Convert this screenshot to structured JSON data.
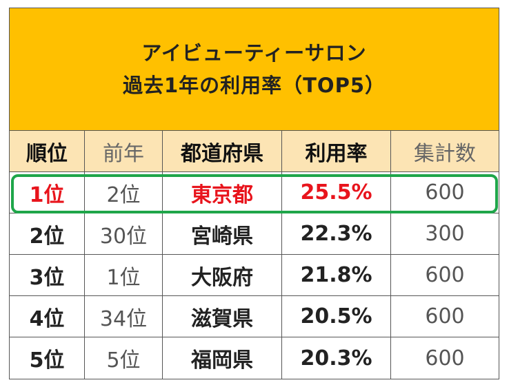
{
  "title": {
    "line1": "アイビューティーサロン",
    "line2": "過去1年の利用率（TOP5）"
  },
  "columns": [
    "順位",
    "前年",
    "都道府県",
    "利用率",
    "集計数"
  ],
  "rows": [
    {
      "rank": "1位",
      "prev": "2位",
      "pref": "東京都",
      "rate": "25.5%",
      "count": "600"
    },
    {
      "rank": "2位",
      "prev": "30位",
      "pref": "宮崎県",
      "rate": "22.3%",
      "count": "300"
    },
    {
      "rank": "3位",
      "prev": "1位",
      "pref": "大阪府",
      "rate": "21.8%",
      "count": "600"
    },
    {
      "rank": "4位",
      "prev": "34位",
      "pref": "滋賀県",
      "rate": "20.5%",
      "count": "600"
    },
    {
      "rank": "5位",
      "prev": "5位",
      "pref": "福岡県",
      "rate": "20.3%",
      "count": "600"
    }
  ],
  "colors": {
    "header_bg": "#ffc000",
    "column_header_bg": "#fce4b4",
    "highlight_text": "#e8141c",
    "highlight_border": "#1fa64a"
  }
}
